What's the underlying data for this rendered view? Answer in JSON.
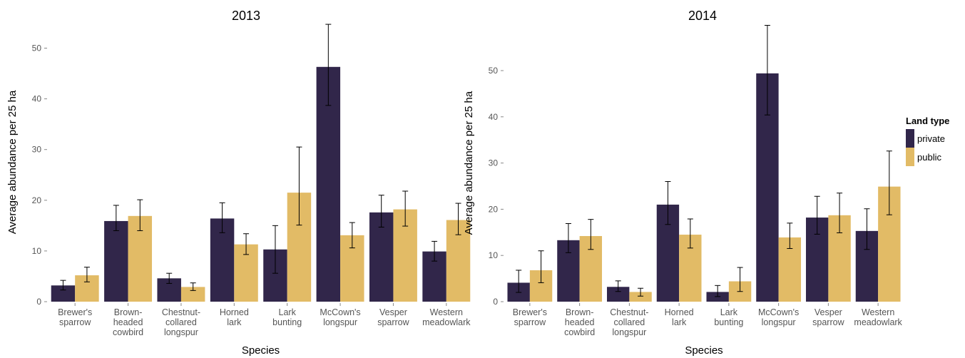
{
  "colors": {
    "private": "#31264a",
    "public": "#e2bb66"
  },
  "legend": {
    "title": "Land type",
    "items": [
      {
        "label": "private",
        "color": "#31264a"
      },
      {
        "label": "public",
        "color": "#e2bb66"
      }
    ]
  },
  "chart_data": [
    {
      "type": "bar",
      "title": "2013",
      "xlabel": "Species",
      "ylabel": "Average abundance per 25 ha",
      "ylim": [
        0,
        55
      ],
      "yticks": [
        0,
        10,
        20,
        30,
        40,
        50
      ],
      "grid": false,
      "categories": [
        [
          "Brewer's",
          "sparrow"
        ],
        [
          "Brown-",
          "headed",
          "cowbird"
        ],
        [
          "Chestnut-",
          "collared",
          "longspur"
        ],
        [
          "Horned",
          "lark"
        ],
        [
          "Lark",
          "bunting"
        ],
        [
          "McCown's",
          "longspur"
        ],
        [
          "Vesper",
          "sparrow"
        ],
        [
          "Western",
          "meadowlark"
        ]
      ],
      "series": [
        {
          "name": "private",
          "values": [
            3.2,
            15.9,
            4.6,
            16.4,
            10.3,
            46.3,
            17.6,
            9.9
          ],
          "err_low": [
            2.3,
            14.0,
            3.6,
            13.6,
            5.6,
            38.7,
            14.7,
            8.0
          ],
          "err_high": [
            4.2,
            19.0,
            5.6,
            19.5,
            15.0,
            54.7,
            21.0,
            11.9
          ]
        },
        {
          "name": "public",
          "values": [
            5.2,
            16.9,
            2.9,
            11.3,
            21.5,
            13.1,
            18.2,
            16.1
          ],
          "err_low": [
            3.9,
            14.0,
            2.2,
            9.3,
            15.1,
            10.6,
            14.9,
            13.2
          ],
          "err_high": [
            6.8,
            20.1,
            3.7,
            13.4,
            30.5,
            15.6,
            21.8,
            19.4
          ]
        }
      ]
    },
    {
      "type": "bar",
      "title": "2014",
      "xlabel": "Species",
      "ylabel": "Average abundance per 25 ha",
      "ylim": [
        0,
        60
      ],
      "yticks": [
        0,
        10,
        20,
        30,
        40,
        50
      ],
      "grid": false,
      "categories": [
        [
          "Brewer's",
          "sparrow"
        ],
        [
          "Brown-",
          "headed",
          "cowbird"
        ],
        [
          "Chestnut-",
          "collared",
          "longspur"
        ],
        [
          "Horned",
          "lark"
        ],
        [
          "Lark",
          "bunting"
        ],
        [
          "McCown's",
          "longspur"
        ],
        [
          "Vesper",
          "sparrow"
        ],
        [
          "Western",
          "meadowlark"
        ]
      ],
      "series": [
        {
          "name": "private",
          "values": [
            4.1,
            13.3,
            3.2,
            21.0,
            2.1,
            49.4,
            18.2,
            15.3
          ],
          "err_low": [
            2.0,
            10.6,
            2.2,
            16.7,
            1.1,
            40.4,
            14.6,
            11.3
          ],
          "err_high": [
            6.8,
            16.9,
            4.5,
            26.0,
            3.5,
            59.8,
            22.8,
            20.1
          ]
        },
        {
          "name": "public",
          "values": [
            6.8,
            14.2,
            2.1,
            14.5,
            4.4,
            13.9,
            18.7,
            24.9
          ],
          "err_low": [
            4.1,
            11.3,
            1.2,
            11.6,
            2.2,
            11.5,
            14.9,
            18.8
          ],
          "err_high": [
            11.0,
            17.8,
            2.9,
            17.9,
            7.4,
            17.0,
            23.5,
            32.6
          ]
        }
      ]
    }
  ]
}
